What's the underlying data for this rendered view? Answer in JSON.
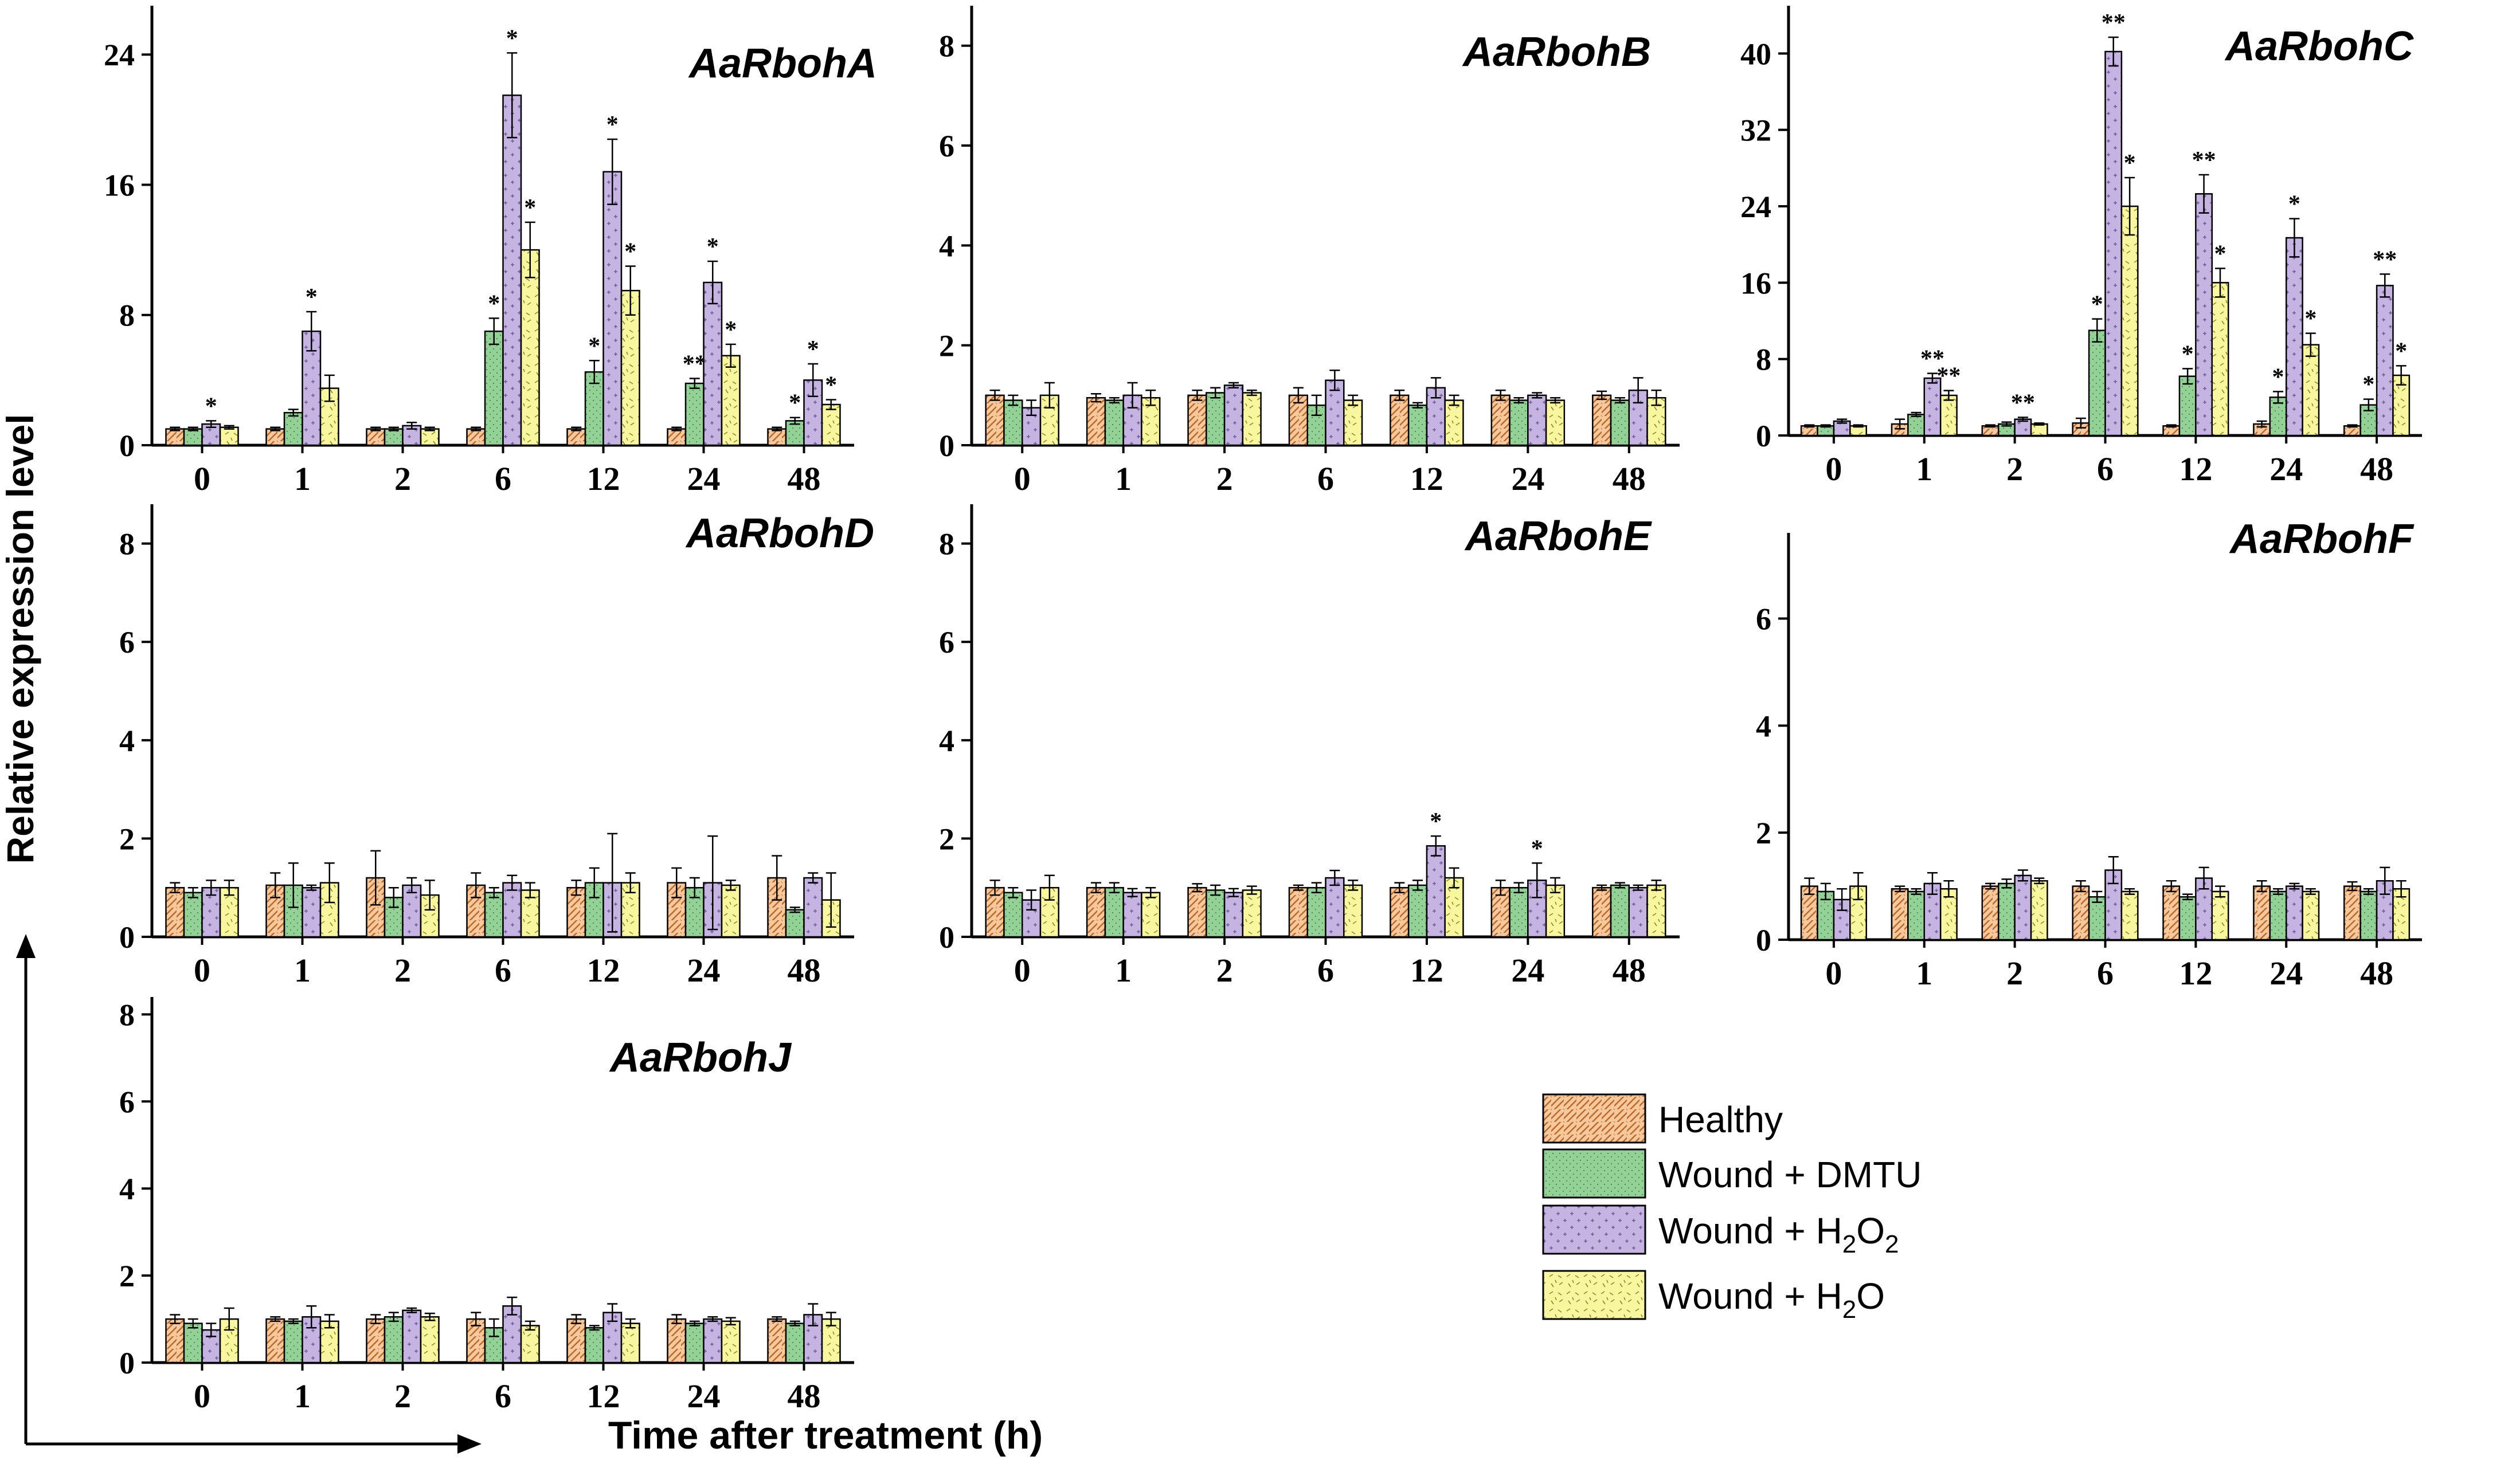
{
  "figure": {
    "ylabel": "Relative expression level",
    "xlabel": "Time after treatment (h)"
  },
  "legend": {
    "items": [
      {
        "key": "healthy",
        "label": "Healthy",
        "color": "#f7c89b",
        "pattern": "hatch"
      },
      {
        "key": "dmtu",
        "label": "Wound + DMTU",
        "color": "#93d197",
        "pattern": "dots"
      },
      {
        "key": "h2o2",
        "label_main": "Wound + H",
        "sub1": "2",
        "mid": "O",
        "sub2": "2",
        "color": "#c5b3e2",
        "pattern": "plus"
      },
      {
        "key": "h2o",
        "label_main": "Wound + H",
        "sub1": "2",
        "mid": "O",
        "color": "#f8f79f",
        "pattern": "dash"
      }
    ]
  },
  "colors": {
    "healthy": "#f7c89b",
    "dmtu": "#93d197",
    "h2o2": "#c5b3e2",
    "h2o": "#f8f79f",
    "axis": "#000000"
  },
  "chart_data": [
    {
      "type": "bar",
      "title": "AaRbohA",
      "categories": [
        "0",
        "1",
        "2",
        "6",
        "12",
        "24",
        "48"
      ],
      "ylim": [
        0,
        27
      ],
      "yticks": [
        0,
        8,
        16,
        24
      ],
      "series": [
        {
          "name": "Healthy",
          "values": [
            1,
            1,
            1,
            1,
            1,
            1,
            1
          ],
          "errors": [
            0.1,
            0.1,
            0.1,
            0.1,
            0.1,
            0.1,
            0.1
          ],
          "sig": [
            "",
            "",
            "",
            "",
            "",
            "",
            ""
          ]
        },
        {
          "name": "Wound + DMTU",
          "values": [
            1,
            2,
            1,
            7,
            4.5,
            3.8,
            1.5
          ],
          "errors": [
            0.1,
            0.2,
            0.1,
            0.8,
            0.7,
            0.3,
            0.2
          ],
          "sig": [
            "",
            "",
            "",
            "*",
            "*",
            "**",
            "*"
          ]
        },
        {
          "name": "Wound + H2O2",
          "values": [
            1.3,
            7,
            1.2,
            21.5,
            16.8,
            10,
            4
          ],
          "errors": [
            0.2,
            1.2,
            0.2,
            2.6,
            2,
            1.3,
            1
          ],
          "sig": [
            "*",
            "*",
            "",
            "*",
            "*",
            "*",
            "*"
          ]
        },
        {
          "name": "Wound + H2O",
          "values": [
            1.1,
            3.5,
            1,
            12,
            9.5,
            5.5,
            2.5
          ],
          "errors": [
            0.1,
            0.8,
            0.1,
            1.7,
            1.5,
            0.7,
            0.3
          ],
          "sig": [
            "",
            "",
            "",
            "*",
            "*",
            "*",
            "*"
          ]
        }
      ]
    },
    {
      "type": "bar",
      "title": "AaRbohB",
      "categories": [
        "0",
        "1",
        "2",
        "6",
        "12",
        "24",
        "48"
      ],
      "ylim": [
        0,
        8.8
      ],
      "yticks": [
        0,
        2,
        4,
        6,
        8
      ],
      "series": [
        {
          "name": "Healthy",
          "values": [
            1,
            0.95,
            1,
            1,
            1,
            1,
            1
          ],
          "errors": [
            0.1,
            0.08,
            0.1,
            0.15,
            0.1,
            0.1,
            0.08
          ],
          "sig": [
            "",
            "",
            "",
            "",
            "",
            "",
            ""
          ]
        },
        {
          "name": "Wound + DMTU",
          "values": [
            0.9,
            0.9,
            1.05,
            0.8,
            0.8,
            0.9,
            0.9
          ],
          "errors": [
            0.1,
            0.05,
            0.1,
            0.2,
            0.05,
            0.05,
            0.05
          ],
          "sig": [
            "",
            "",
            "",
            "",
            "",
            "",
            ""
          ]
        },
        {
          "name": "Wound + H2O2",
          "values": [
            0.75,
            1,
            1.2,
            1.3,
            1.15,
            1,
            1.1
          ],
          "errors": [
            0.15,
            0.25,
            0.05,
            0.2,
            0.2,
            0.05,
            0.25
          ],
          "sig": [
            "",
            "",
            "",
            "",
            "",
            "",
            ""
          ]
        },
        {
          "name": "Wound + H2O",
          "values": [
            1,
            0.95,
            1.05,
            0.9,
            0.9,
            0.9,
            0.95
          ],
          "errors": [
            0.25,
            0.15,
            0.05,
            0.1,
            0.1,
            0.05,
            0.15
          ],
          "sig": [
            "",
            "",
            "",
            "",
            "",
            "",
            ""
          ]
        }
      ]
    },
    {
      "type": "bar",
      "title": "AaRbohC",
      "categories": [
        "0",
        "1",
        "2",
        "6",
        "12",
        "24",
        "48"
      ],
      "ylim": [
        0,
        45
      ],
      "yticks": [
        0,
        8,
        16,
        24,
        32,
        40
      ],
      "series": [
        {
          "name": "Healthy",
          "values": [
            1,
            1.2,
            1,
            1.3,
            1,
            1.2,
            1
          ],
          "errors": [
            0.1,
            0.5,
            0.1,
            0.5,
            0.1,
            0.3,
            0.1
          ],
          "sig": [
            "",
            "",
            "",
            "",
            "",
            "",
            ""
          ]
        },
        {
          "name": "Wound + DMTU",
          "values": [
            1,
            2.2,
            1.2,
            11,
            6.2,
            4,
            3.2
          ],
          "errors": [
            0.1,
            0.2,
            0.2,
            1.2,
            0.8,
            0.6,
            0.6
          ],
          "sig": [
            "",
            "",
            "",
            "*",
            "*",
            "*",
            "*"
          ]
        },
        {
          "name": "Wound + H2O2",
          "values": [
            1.5,
            6,
            1.7,
            40.2,
            25.3,
            20.7,
            15.7
          ],
          "errors": [
            0.2,
            0.5,
            0.2,
            1.5,
            2,
            2,
            1.2
          ],
          "sig": [
            "",
            "**",
            "**",
            "**",
            "**",
            "*",
            "**"
          ]
        },
        {
          "name": "Wound + H2O",
          "values": [
            1,
            4.2,
            1.2,
            24,
            16,
            9.5,
            6.3
          ],
          "errors": [
            0.1,
            0.5,
            0.1,
            3,
            1.5,
            1.2,
            1
          ],
          "sig": [
            "",
            "**",
            "",
            "*",
            "*",
            "*",
            "*"
          ]
        }
      ]
    },
    {
      "type": "bar",
      "title": "AaRbohD",
      "categories": [
        "0",
        "1",
        "2",
        "6",
        "12",
        "24",
        "48"
      ],
      "ylim": [
        0,
        8.8
      ],
      "yticks": [
        0,
        2,
        4,
        6,
        8
      ],
      "series": [
        {
          "name": "Healthy",
          "values": [
            1,
            1.05,
            1.2,
            1.05,
            1,
            1.1,
            1.2
          ],
          "errors": [
            0.1,
            0.25,
            0.55,
            0.25,
            0.15,
            0.3,
            0.45
          ],
          "sig": [
            "",
            "",
            "",
            "",
            "",
            "",
            ""
          ]
        },
        {
          "name": "Wound + DMTU",
          "values": [
            0.9,
            1.05,
            0.8,
            0.9,
            1.1,
            1,
            0.55
          ],
          "errors": [
            0.1,
            0.45,
            0.2,
            0.1,
            0.3,
            0.2,
            0.05
          ],
          "sig": [
            "",
            "",
            "",
            "",
            "",
            "",
            ""
          ]
        },
        {
          "name": "Wound + H2O2",
          "values": [
            1,
            1,
            1.05,
            1.1,
            1.1,
            1.1,
            1.2
          ],
          "errors": [
            0.15,
            0.05,
            0.15,
            0.15,
            1,
            0.95,
            0.1
          ],
          "sig": [
            "",
            "",
            "",
            "",
            "",
            "",
            ""
          ]
        },
        {
          "name": "Wound + H2O",
          "values": [
            1,
            1.1,
            0.85,
            0.95,
            1.1,
            1.05,
            0.75
          ],
          "errors": [
            0.15,
            0.4,
            0.3,
            0.15,
            0.2,
            0.1,
            0.55
          ],
          "sig": [
            "",
            "",
            "",
            "",
            "",
            "",
            ""
          ]
        }
      ]
    },
    {
      "type": "bar",
      "title": "AaRbohE",
      "categories": [
        "0",
        "1",
        "2",
        "6",
        "12",
        "24",
        "48"
      ],
      "ylim": [
        0,
        8.8
      ],
      "yticks": [
        0,
        2,
        4,
        6,
        8
      ],
      "series": [
        {
          "name": "Healthy",
          "values": [
            1,
            1,
            1,
            1,
            1,
            1,
            1
          ],
          "errors": [
            0.15,
            0.1,
            0.08,
            0.05,
            0.1,
            0.15,
            0.05
          ],
          "sig": [
            "",
            "",
            "",
            "",
            "",
            "",
            ""
          ]
        },
        {
          "name": "Wound + DMTU",
          "values": [
            0.9,
            1,
            0.95,
            1,
            1.05,
            1,
            1.05
          ],
          "errors": [
            0.1,
            0.1,
            0.1,
            0.1,
            0.1,
            0.1,
            0.05
          ],
          "sig": [
            "",
            "",
            "",
            "",
            "",
            "",
            ""
          ]
        },
        {
          "name": "Wound + H2O2",
          "values": [
            0.75,
            0.9,
            0.9,
            1.2,
            1.85,
            1.15,
            1
          ],
          "errors": [
            0.2,
            0.08,
            0.08,
            0.15,
            0.2,
            0.35,
            0.05
          ],
          "sig": [
            "",
            "",
            "",
            "",
            "*",
            "*",
            ""
          ]
        },
        {
          "name": "Wound + H2O",
          "values": [
            1,
            0.9,
            0.95,
            1.05,
            1.2,
            1.05,
            1.05
          ],
          "errors": [
            0.25,
            0.1,
            0.08,
            0.1,
            0.2,
            0.15,
            0.1
          ],
          "sig": [
            "",
            "",
            "",
            "",
            "",
            "",
            ""
          ]
        }
      ]
    },
    {
      "type": "bar",
      "title": "AaRbohF",
      "categories": [
        "0",
        "1",
        "2",
        "6",
        "12",
        "24",
        "48"
      ],
      "ylim": [
        0,
        7.6
      ],
      "yticks": [
        0,
        2,
        4,
        6
      ],
      "series": [
        {
          "name": "Healthy",
          "values": [
            1,
            0.95,
            1,
            1,
            1,
            1,
            1
          ],
          "errors": [
            0.15,
            0.05,
            0.05,
            0.1,
            0.1,
            0.1,
            0.08
          ],
          "sig": [
            "",
            "",
            "",
            "",
            "",
            "",
            ""
          ]
        },
        {
          "name": "Wound + DMTU",
          "values": [
            0.9,
            0.9,
            1.05,
            0.8,
            0.8,
            0.9,
            0.9
          ],
          "errors": [
            0.15,
            0.05,
            0.08,
            0.1,
            0.05,
            0.05,
            0.05
          ],
          "sig": [
            "",
            "",
            "",
            "",
            "",
            "",
            ""
          ]
        },
        {
          "name": "Wound + H2O2",
          "values": [
            0.75,
            1.05,
            1.2,
            1.3,
            1.15,
            1,
            1.1
          ],
          "errors": [
            0.2,
            0.2,
            0.1,
            0.25,
            0.2,
            0.05,
            0.25
          ],
          "sig": [
            "",
            "",
            "",
            "",
            "",
            "",
            ""
          ]
        },
        {
          "name": "Wound + H2O",
          "values": [
            1,
            0.95,
            1.1,
            0.9,
            0.9,
            0.9,
            0.95
          ],
          "errors": [
            0.25,
            0.15,
            0.05,
            0.05,
            0.1,
            0.05,
            0.15
          ],
          "sig": [
            "",
            "",
            "",
            "",
            "",
            "",
            ""
          ]
        }
      ]
    },
    {
      "type": "bar",
      "title": "AaRbohJ",
      "categories": [
        "0",
        "1",
        "2",
        "6",
        "12",
        "24",
        "48"
      ],
      "ylim": [
        0,
        8.4
      ],
      "yticks": [
        0,
        2,
        4,
        6,
        8
      ],
      "series": [
        {
          "name": "Healthy",
          "values": [
            1,
            1,
            1,
            1,
            1,
            1,
            1
          ],
          "errors": [
            0.1,
            0.05,
            0.1,
            0.15,
            0.1,
            0.1,
            0.05
          ],
          "sig": [
            "",
            "",
            "",
            "",
            "",
            "",
            ""
          ]
        },
        {
          "name": "Wound + DMTU",
          "values": [
            0.9,
            0.95,
            1.05,
            0.8,
            0.8,
            0.9,
            0.9
          ],
          "errors": [
            0.1,
            0.05,
            0.1,
            0.2,
            0.05,
            0.05,
            0.05
          ],
          "sig": [
            "",
            "",
            "",
            "",
            "",
            "",
            ""
          ]
        },
        {
          "name": "Wound + H2O2",
          "values": [
            0.75,
            1.05,
            1.2,
            1.3,
            1.15,
            1,
            1.1
          ],
          "errors": [
            0.15,
            0.25,
            0.05,
            0.2,
            0.2,
            0.05,
            0.25
          ],
          "sig": [
            "",
            "",
            "",
            "",
            "",
            "",
            ""
          ]
        },
        {
          "name": "Wound + H2O",
          "values": [
            1,
            0.95,
            1.05,
            0.85,
            0.9,
            0.95,
            1
          ],
          "errors": [
            0.25,
            0.15,
            0.08,
            0.1,
            0.1,
            0.08,
            0.15
          ],
          "sig": [
            "",
            "",
            "",
            "",
            "",
            "",
            ""
          ]
        }
      ]
    }
  ]
}
